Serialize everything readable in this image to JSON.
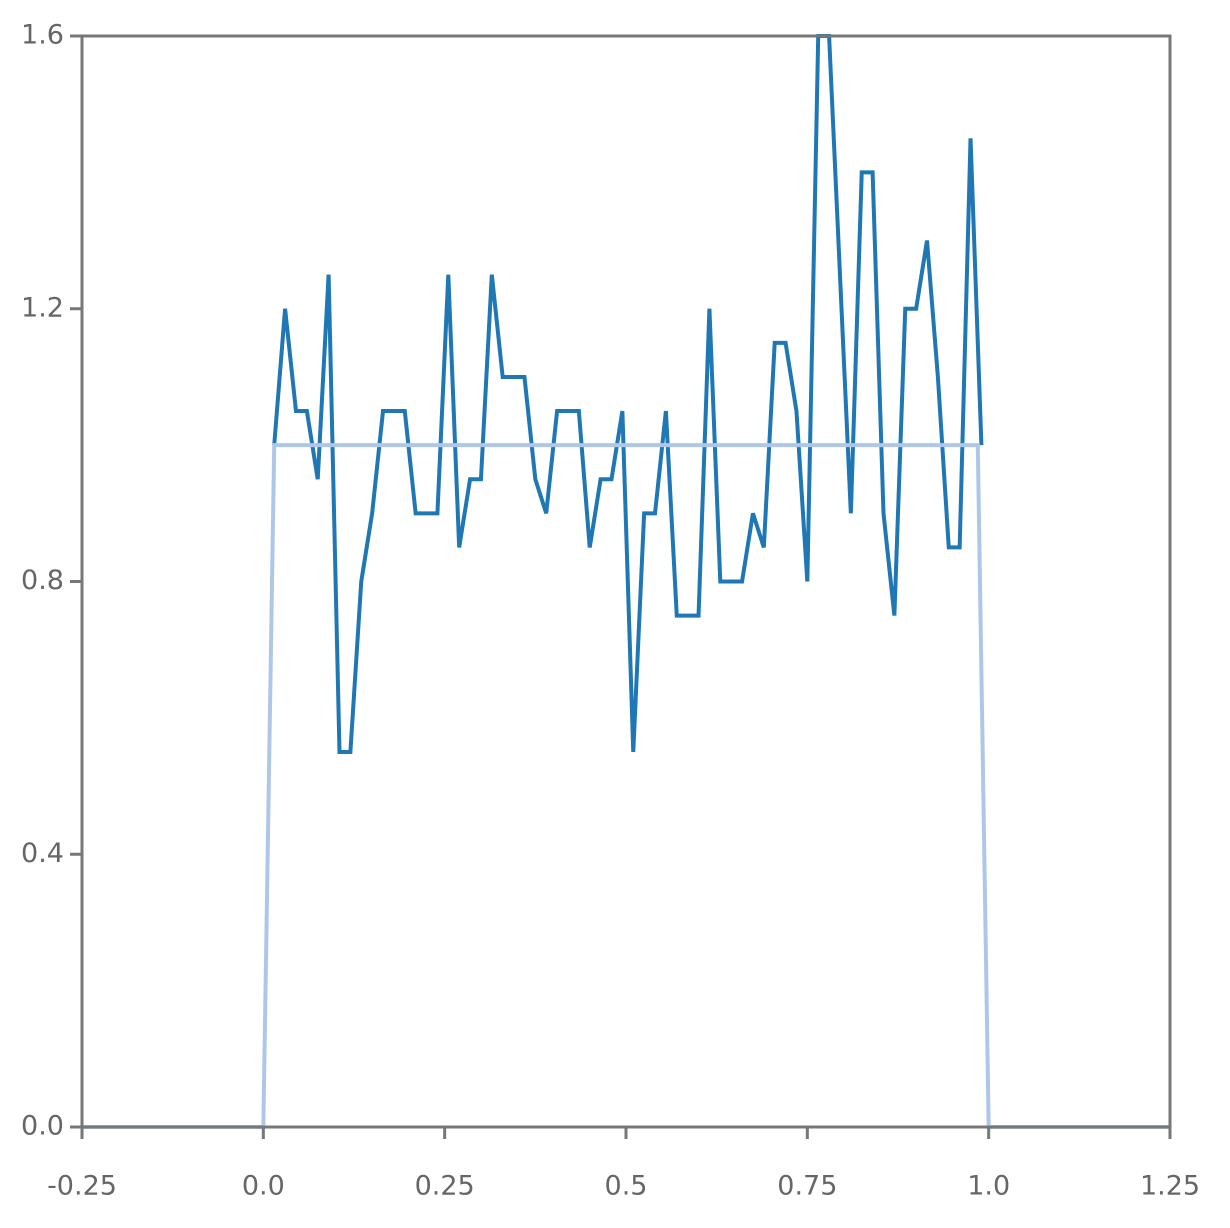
{
  "chart_data": {
    "type": "line",
    "xlim": [
      -0.25,
      1.25
    ],
    "xticks": [
      -0.25,
      {
        "value": 0,
        "label": "0.0"
      },
      0.25,
      0.5,
      0.75,
      {
        "value": 1,
        "label": "1.0"
      },
      1.25
    ],
    "ylim": [
      0,
      1.6
    ],
    "yticks": [
      {
        "value": 0,
        "label": "0.0"
      },
      0.4,
      0.8,
      1.2,
      1.6
    ],
    "grid": false,
    "series": [
      {
        "color": "#1f77b4",
        "x": [
          0.015,
          0.03,
          0.045,
          0.06,
          0.075,
          0.09,
          0.105,
          0.12,
          0.135,
          0.15,
          0.165,
          0.18,
          0.195,
          0.21,
          0.225,
          0.24,
          0.255,
          0.27,
          0.285,
          0.3,
          0.315,
          0.33,
          0.345,
          0.36,
          0.375,
          0.39,
          0.405,
          0.42,
          0.435,
          0.45,
          0.465,
          0.48,
          0.495,
          0.51,
          0.525,
          0.54,
          0.555,
          0.57,
          0.585,
          0.6,
          0.615,
          0.63,
          0.645,
          0.66,
          0.675,
          0.69,
          0.705,
          0.72,
          0.735,
          0.75,
          0.765,
          0.78,
          0.795,
          0.81,
          0.825,
          0.84,
          0.855,
          0.87,
          0.885,
          0.9,
          0.915,
          0.93,
          0.945,
          0.96,
          0.975,
          0.99
        ],
        "values": [
          1.0,
          1.2,
          1.05,
          1.05,
          0.95,
          1.25,
          0.55,
          0.55,
          0.8,
          0.9,
          1.05,
          1.05,
          1.05,
          0.9,
          0.9,
          0.9,
          1.25,
          0.85,
          0.95,
          0.95,
          1.25,
          1.1,
          1.1,
          1.1,
          0.95,
          0.9,
          1.05,
          1.05,
          1.05,
          0.85,
          0.95,
          0.95,
          1.05,
          0.55,
          0.9,
          0.9,
          1.05,
          0.75,
          0.75,
          0.75,
          1.2,
          0.8,
          0.8,
          0.8,
          0.9,
          0.85,
          1.15,
          1.15,
          1.05,
          0.8,
          1.6,
          1.6,
          1.25,
          0.9,
          1.4,
          1.4,
          0.9,
          0.75,
          1.2,
          1.2,
          1.3,
          1.1,
          0.85,
          0.85,
          1.45,
          1.0
        ]
      },
      {
        "color": "#aec7e8",
        "x": [
          -0.25,
          0,
          0.015,
          0.985,
          1,
          1.25
        ],
        "values": [
          0,
          0,
          1,
          1,
          0,
          0
        ]
      }
    ]
  }
}
